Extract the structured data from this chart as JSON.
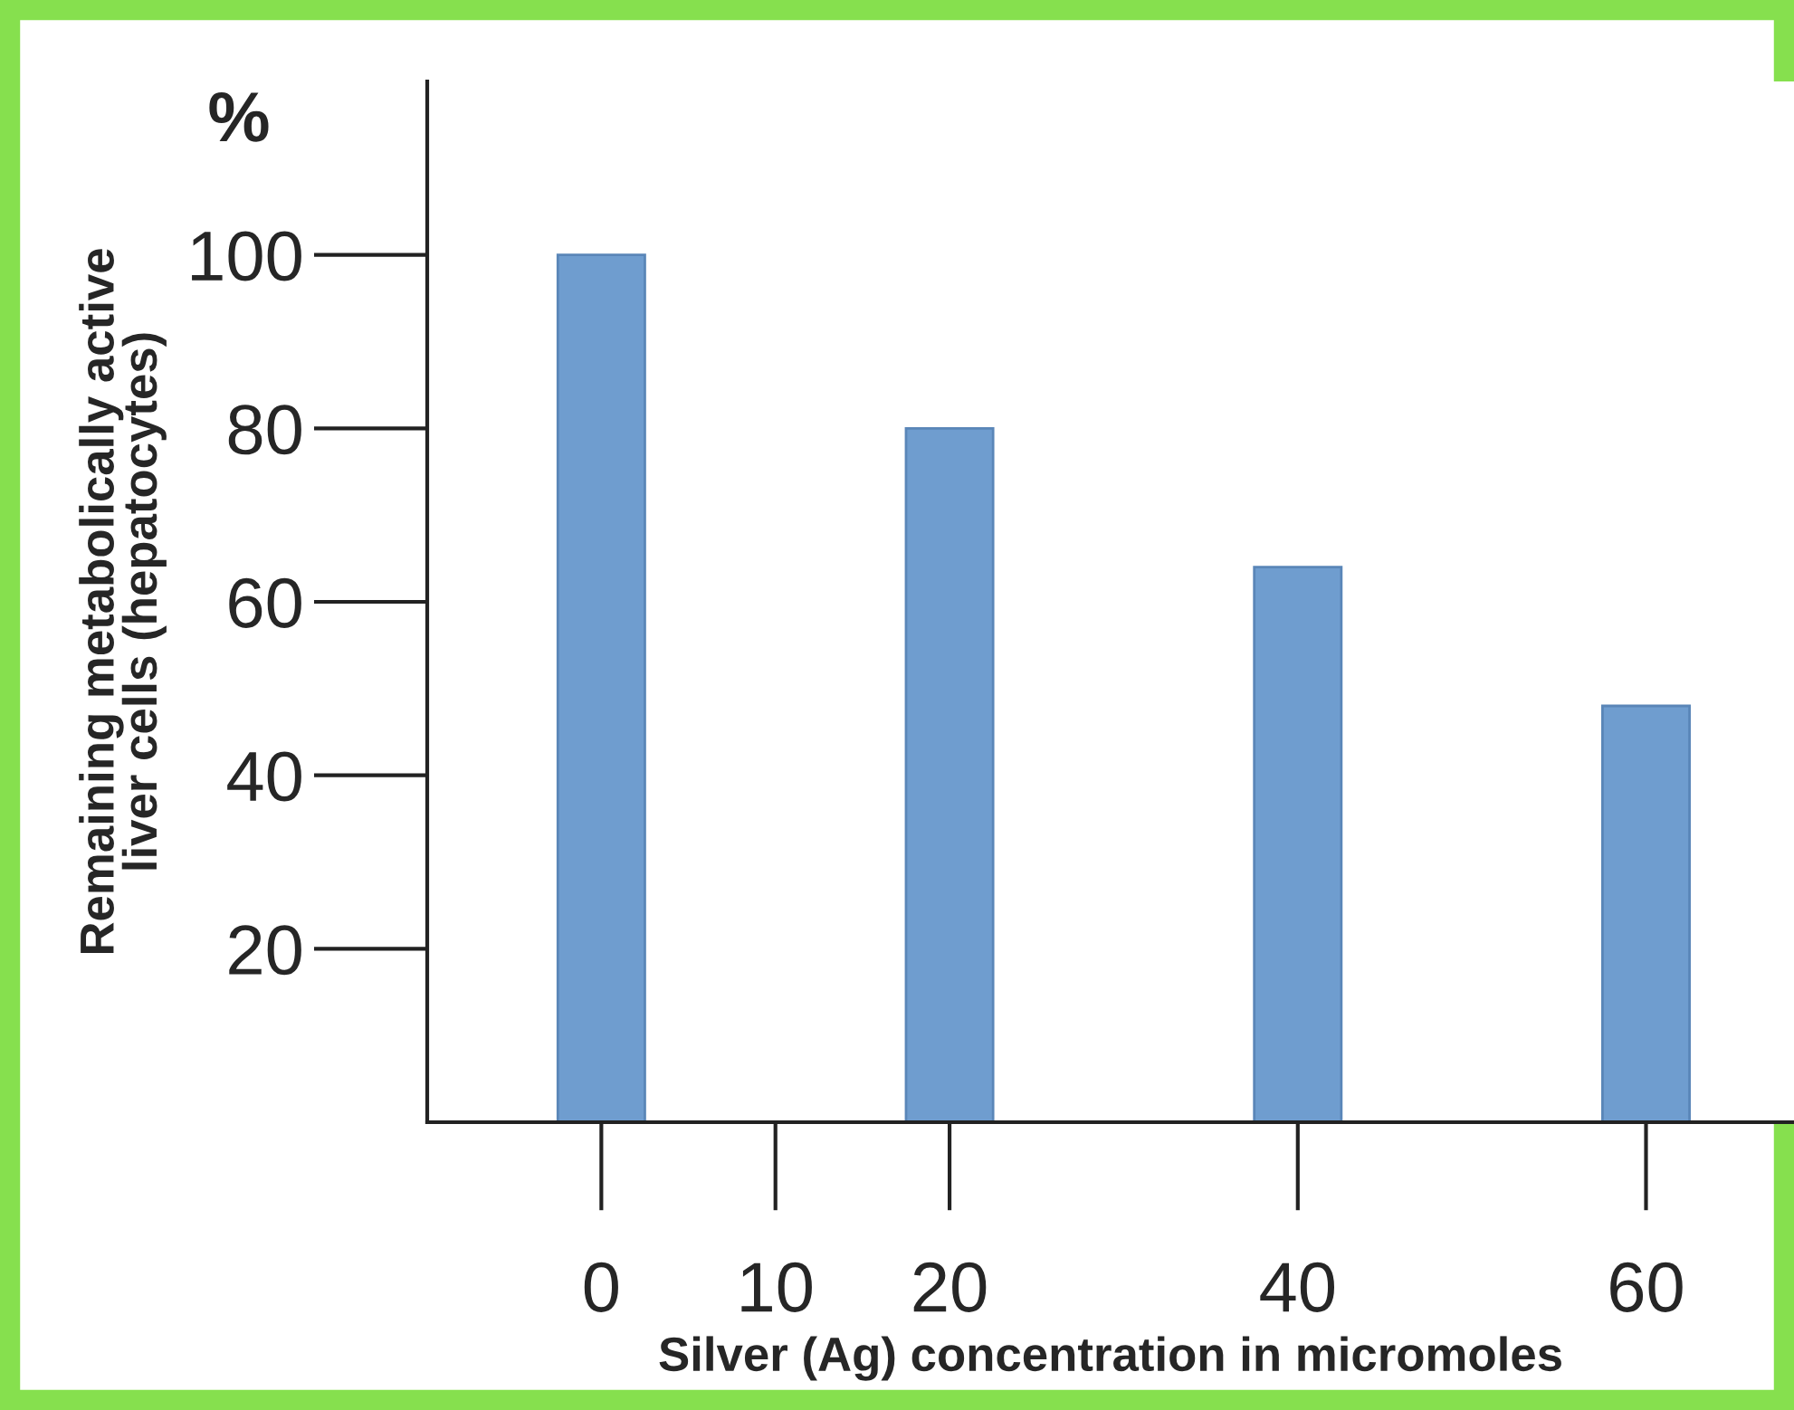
{
  "chart_data": {
    "type": "bar",
    "xlabel": "Silver (Ag) concentration in micromoles",
    "ylabel": "Remaining metabolically active\nliver cells (hepatocytes)",
    "annotations": [
      "%"
    ],
    "x": [
      0,
      20,
      40,
      60
    ],
    "values": [
      100,
      80,
      64,
      48
    ],
    "color": "#6f9dcf",
    "xlim": [
      -10,
      68.5
    ],
    "xticks": [
      0,
      10,
      20,
      40,
      60
    ],
    "ylim": [
      0,
      120
    ],
    "yticks": [
      20,
      40,
      60,
      80,
      100
    ],
    "grid": false,
    "legend": false
  }
}
